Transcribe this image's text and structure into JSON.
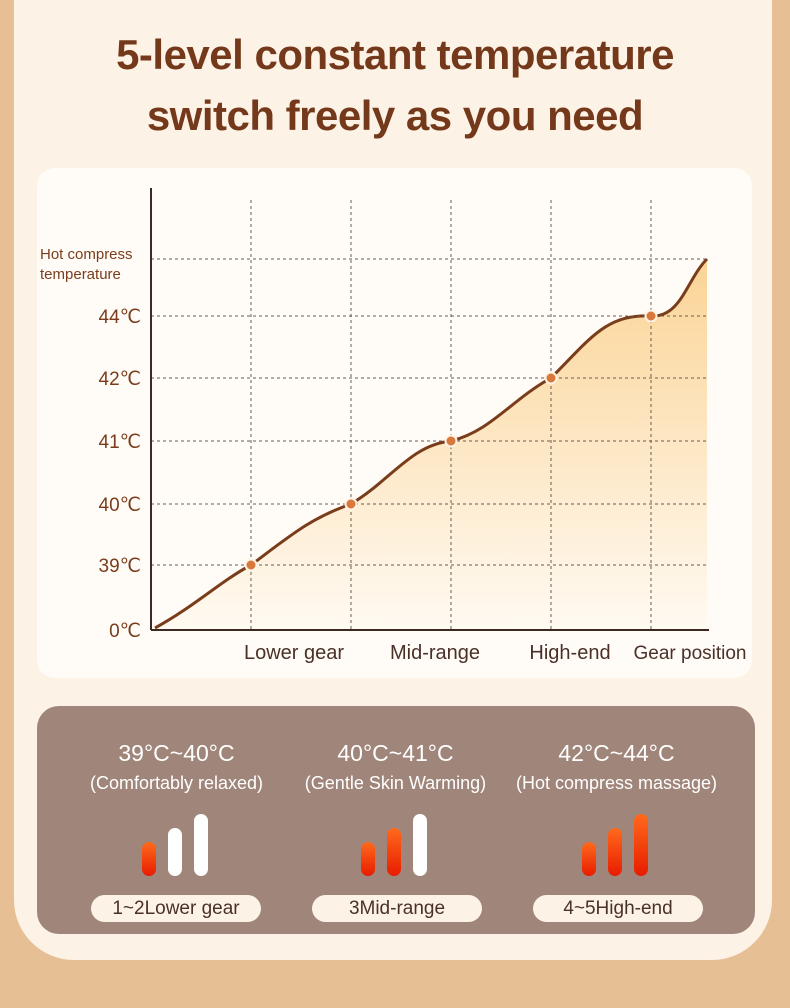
{
  "title": {
    "line1": "5-level constant temperature",
    "line2": "switch freely as you need"
  },
  "colors": {
    "title": "#74381a",
    "axis": "#3c2a22",
    "curve": "#7a3d1c",
    "point": "#d9783a",
    "fill_top": "#fbd496",
    "fill_bottom": "#fffaf2",
    "panel": "#a0857a",
    "bar_on": "#ff4a10",
    "bar_off": "#ffffff"
  },
  "chart_data": {
    "type": "area",
    "ylabel_lines": [
      "Hot compress",
      "temperature"
    ],
    "xlabel": "Gear position",
    "y_ticks": [
      "0℃",
      "39℃",
      "40℃",
      "41℃",
      "42℃",
      "44℃"
    ],
    "x_categories": [
      "Lower gear",
      "Mid-range",
      "High-end"
    ],
    "points": [
      {
        "gear": 1,
        "temp": 39
      },
      {
        "gear": 2,
        "temp": 40
      },
      {
        "gear": 3,
        "temp": 41
      },
      {
        "gear": 4,
        "temp": 42
      },
      {
        "gear": 5,
        "temp": 44
      }
    ],
    "grid": true,
    "grid_style": "dashed"
  },
  "levels": [
    {
      "range": "39°C~40°C",
      "desc": "(Comfortably relaxed)",
      "pill": "1~2Lower gear",
      "bars_on": 1
    },
    {
      "range": "40°C~41°C",
      "desc": "(Gentle Skin Warming)",
      "pill": "3Mid-range",
      "bars_on": 2
    },
    {
      "range": "42°C~44°C",
      "desc": "(Hot compress massage)",
      "pill": "4~5High-end",
      "bars_on": 3
    }
  ]
}
